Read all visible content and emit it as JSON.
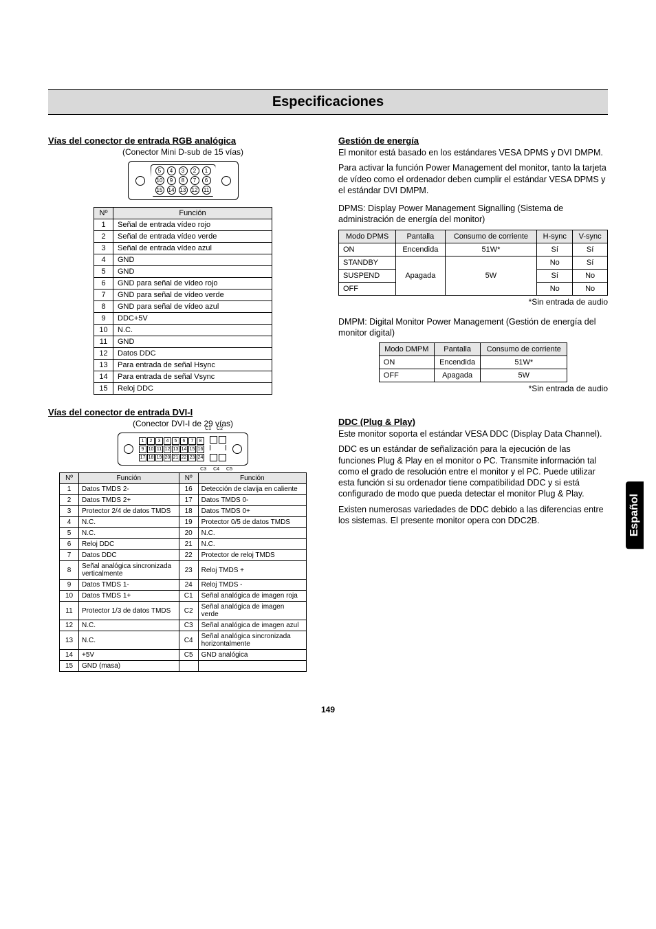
{
  "title": "Especificaciones",
  "side_tab": "Español",
  "page_number": "149",
  "left": {
    "rgb": {
      "heading": "Vías del conector de entrada RGB analógica",
      "sub": "(Conector Mini D-sub de 15 vías)",
      "diagram": {
        "row1": [
          "5",
          "4",
          "3",
          "2",
          "1"
        ],
        "row2": [
          "10",
          "9",
          "8",
          "7",
          "6"
        ],
        "row3": [
          "15",
          "14",
          "13",
          "12",
          "11"
        ]
      },
      "table": {
        "head": [
          "Nº",
          "Función"
        ],
        "rows": [
          [
            "1",
            "Señal de entrada vídeo rojo"
          ],
          [
            "2",
            "Señal de entrada vídeo verde"
          ],
          [
            "3",
            "Señal de entrada vídeo azul"
          ],
          [
            "4",
            "GND"
          ],
          [
            "5",
            "GND"
          ],
          [
            "6",
            "GND para señal de vídeo rojo"
          ],
          [
            "7",
            "GND para señal de vídeo verde"
          ],
          [
            "8",
            "GND para señal de vídeo azul"
          ],
          [
            "9",
            "DDC+5V"
          ],
          [
            "10",
            "N.C."
          ],
          [
            "11",
            "GND"
          ],
          [
            "12",
            "Datos DDC"
          ],
          [
            "13",
            "Para entrada de señal Hsync"
          ],
          [
            "14",
            "Para entrada de señal Vsync"
          ],
          [
            "15",
            "Reloj DDC"
          ]
        ]
      }
    },
    "dvi": {
      "heading": "Vías del conector de entrada DVI-I",
      "sub": "(Conector DVI-I de 29 vías)",
      "diagram": {
        "rows": [
          [
            "1",
            "2",
            "3",
            "4",
            "5",
            "6",
            "7",
            "8"
          ],
          [
            "9",
            "10",
            "11",
            "12",
            "13",
            "14",
            "15",
            "16"
          ],
          [
            "17",
            "18",
            "19",
            "20",
            "21",
            "22",
            "23",
            "24"
          ]
        ],
        "analog_top": [
          "C1",
          "C2"
        ],
        "analog_bot": [
          "C3",
          "C4",
          "C5"
        ]
      },
      "table": {
        "head": [
          "Nº",
          "Función",
          "Nº",
          "Función"
        ],
        "rows": [
          [
            "1",
            "Datos TMDS 2-",
            "16",
            "Detección de clavija en caliente"
          ],
          [
            "2",
            "Datos TMDS 2+",
            "17",
            "Datos TMDS 0-"
          ],
          [
            "3",
            "Protector 2/4 de datos TMDS",
            "18",
            "Datos TMDS 0+"
          ],
          [
            "4",
            "N.C.",
            "19",
            "Protector 0/5 de datos TMDS"
          ],
          [
            "5",
            "N.C.",
            "20",
            "N.C."
          ],
          [
            "6",
            "Reloj DDC",
            "21",
            "N.C."
          ],
          [
            "7",
            "Datos DDC",
            "22",
            "Protector de reloj TMDS"
          ],
          [
            "8",
            "Señal analógica sincronizada verticalmente",
            "23",
            "Reloj TMDS +"
          ],
          [
            "9",
            "Datos TMDS 1-",
            "24",
            "Reloj TMDS -"
          ],
          [
            "10",
            "Datos TMDS 1+",
            "C1",
            "Señal analógica de imagen roja"
          ],
          [
            "11",
            "Protector 1/3 de datos TMDS",
            "C2",
            "Señal analógica de imagen verde"
          ],
          [
            "12",
            "N.C.",
            "C3",
            "Señal analógica de imagen azul"
          ],
          [
            "13",
            "N.C.",
            "C4",
            "Señal analógica sincronizada horizontalmente"
          ],
          [
            "14",
            "+5V",
            "C5",
            "GND analógica"
          ],
          [
            "15",
            "GND (masa)",
            "",
            ""
          ]
        ]
      }
    }
  },
  "right": {
    "power": {
      "heading": "Gestión de energía",
      "p1": "El monitor está basado en los estándares VESA DPMS y DVI DMPM.",
      "p2": "Para activar la función Power Management del monitor, tanto la tarjeta de vídeo como el ordenador deben cumplir el estándar VESA DPMS y el estándar DVI DMPM.",
      "p3": "DPMS: Display Power Management Signalling (Sistema de administración de energía del monitor)",
      "dpms_table": {
        "head": [
          "Modo DPMS",
          "Pantalla",
          "Consumo de corriente",
          "H-sync",
          "V-sync"
        ],
        "rows": [
          {
            "mode": "ON",
            "screen": "Encendida",
            "cons": "51W*",
            "h": "Sí",
            "v": "Sí"
          },
          {
            "mode": "STANDBY",
            "screen": "",
            "cons": "",
            "h": "No",
            "v": "Sí"
          },
          {
            "mode": "SUSPEND",
            "screen": "Apagada",
            "cons": "5W",
            "h": "Sí",
            "v": "No"
          },
          {
            "mode": "OFF",
            "screen": "",
            "cons": "",
            "h": "No",
            "v": "No"
          }
        ]
      },
      "note": "*Sin entrada de audio",
      "p4": "DMPM: Digital Monitor Power Management (Gestión de energía del monitor digital)",
      "dmpm_table": {
        "head": [
          "Modo DMPM",
          "Pantalla",
          "Consumo de corriente"
        ],
        "rows": [
          [
            "ON",
            "Encendida",
            "51W*"
          ],
          [
            "OFF",
            "Apagada",
            "5W"
          ]
        ]
      }
    },
    "ddc": {
      "heading": "DDC (Plug & Play)",
      "p1": "Este monitor soporta el estándar VESA DDC (Display Data Channel).",
      "p2": "DDC es un estándar de señalización para la ejecución de las funciones Plug & Play en el monitor o PC. Transmite información tal como el grado de resolución entre el monitor y el PC. Puede utilizar esta función si su ordenador tiene compatibilidad DDC y si está configurado de modo que pueda detectar el monitor Plug & Play.",
      "p3": "Existen numerosas variedades de DDC debido a las diferencias entre los sistemas. El presente monitor opera con DDC2B."
    }
  }
}
